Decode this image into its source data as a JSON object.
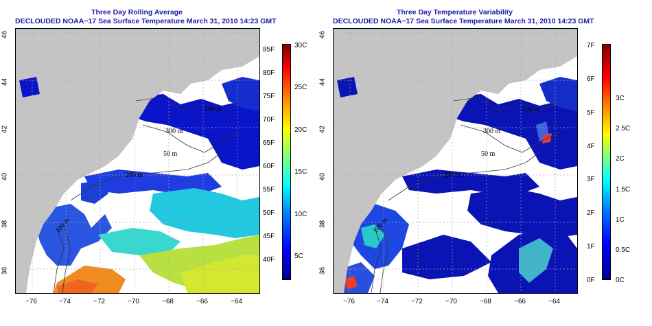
{
  "left": {
    "title": "Three Day Rolling Average",
    "subtitle": "DECLOUDED NOAA−17 Sea Surface Temperature March 31, 2010 14:23 GMT",
    "contours": [
      "100 m",
      "200 m",
      "50 m",
      "100 m",
      "300 m"
    ],
    "colorbar": {
      "fahrenheit": [
        "85F",
        "80F",
        "75F",
        "70F",
        "65F",
        "60F",
        "55F",
        "50F",
        "45F",
        "40F"
      ],
      "celsius": [
        "30C",
        "25C",
        "20C",
        "15C",
        "10C",
        "5C"
      ]
    }
  },
  "right": {
    "title": "Three Day Temperature Variability",
    "subtitle": "DECLOUDED NOAA−17 Sea Surface Temperature March 31, 2010 14:23 GMT",
    "contours": [
      "100 m",
      "200 m",
      "50 m",
      "100 m",
      "300 m"
    ],
    "colorbar": {
      "fahrenheit": [
        "7F",
        "6F",
        "5F",
        "4F",
        "3F",
        "2F",
        "1F",
        "0F"
      ],
      "celsius": [
        "3C",
        "2.5C",
        "2C",
        "1.5C",
        "1C",
        "0.5C",
        "0C"
      ]
    }
  },
  "axes": {
    "x_ticks": [
      "−76",
      "−74",
      "−72",
      "−70",
      "−68",
      "−66",
      "−64"
    ],
    "y_ticks": [
      "46",
      "44",
      "42",
      "40",
      "38",
      "36"
    ],
    "x_range": [
      -77.2,
      -63
    ],
    "y_range": [
      35,
      46.2
    ],
    "grid": "dashed"
  },
  "colors": {
    "land": "#c4c4c4",
    "title": "#1a1aa6",
    "deep_blue": "#0a14b4",
    "colormap": [
      "#00008f",
      "#0000ff",
      "#007fff",
      "#00ffff",
      "#7fff7f",
      "#ffff00",
      "#ff7f00",
      "#ff0000",
      "#7f0000"
    ]
  }
}
